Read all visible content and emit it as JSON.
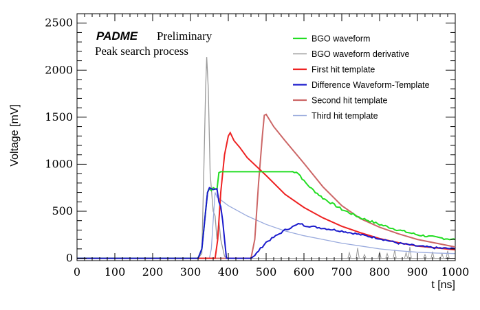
{
  "chart_data": {
    "type": "line",
    "title": "",
    "annotations": {
      "experiment": "PADME",
      "status": "Preliminary",
      "caption": "Peak search process"
    },
    "xlabel": "t [ns]",
    "ylabel": "Voltage [mV]",
    "xlim": [
      0,
      1000
    ],
    "ylim": [
      -25,
      2600
    ],
    "x_ticks": [
      "0",
      "100",
      "200",
      "300",
      "400",
      "500",
      "600",
      "700",
      "800",
      "900",
      "1000"
    ],
    "y_ticks": [
      "0",
      "500",
      "1000",
      "1500",
      "2000",
      "2500"
    ],
    "x_tick_values": [
      0,
      100,
      200,
      300,
      400,
      500,
      600,
      700,
      800,
      900,
      1000
    ],
    "y_tick_values": [
      0,
      500,
      1000,
      1500,
      2000,
      2500
    ],
    "grid": false,
    "legend_position": "top-right",
    "series": [
      {
        "name": "BGO waveform",
        "color": "#22dd22",
        "x": [
          0,
          320,
          330,
          340,
          345,
          350,
          355,
          360,
          370,
          375,
          380,
          400,
          450,
          500,
          550,
          580,
          590,
          600,
          620,
          650,
          700,
          750,
          800,
          850,
          900,
          950,
          1000
        ],
        "y": [
          0,
          0,
          100,
          500,
          700,
          740,
          720,
          750,
          730,
          910,
          920,
          920,
          920,
          920,
          920,
          920,
          880,
          820,
          740,
          640,
          520,
          430,
          360,
          300,
          250,
          220,
          200
        ],
        "noise": 12
      },
      {
        "name": "BGO waveform derivative",
        "color": "#999999",
        "x": [
          0,
          320,
          330,
          335,
          340,
          343,
          347,
          352,
          360,
          365,
          370,
          375,
          380,
          390,
          400,
          450,
          600,
          1000
        ],
        "y": [
          0,
          0,
          50,
          900,
          1800,
          2140,
          1800,
          900,
          500,
          450,
          200,
          400,
          200,
          20,
          0,
          0,
          0,
          0
        ],
        "spikes": [
          [
            720,
            60
          ],
          [
            742,
            110
          ],
          [
            760,
            40
          ],
          [
            800,
            70
          ],
          [
            820,
            50
          ],
          [
            840,
            90
          ],
          [
            870,
            60
          ],
          [
            880,
            120
          ],
          [
            920,
            40
          ],
          [
            940,
            70
          ],
          [
            965,
            50
          ],
          [
            980,
            80
          ]
        ]
      },
      {
        "name": "First hit template",
        "color": "#ee2222",
        "x": [
          0,
          365,
          372,
          380,
          390,
          400,
          405,
          415,
          430,
          450,
          500,
          550,
          600,
          650,
          700,
          750,
          800,
          850,
          900,
          950,
          1000
        ],
        "y": [
          0,
          0,
          200,
          700,
          1100,
          1300,
          1335,
          1250,
          1180,
          1070,
          880,
          680,
          540,
          430,
          340,
          270,
          210,
          165,
          130,
          110,
          90
        ]
      },
      {
        "name": "Difference Waveform-Template",
        "color": "#1a1acc",
        "x": [
          0,
          320,
          330,
          340,
          345,
          350,
          360,
          370,
          375,
          380,
          385,
          390,
          395,
          400,
          460,
          470,
          480,
          500,
          550,
          590,
          600,
          650,
          700,
          750,
          800,
          850,
          900,
          950,
          1000
        ],
        "y": [
          0,
          0,
          100,
          500,
          700,
          750,
          730,
          740,
          600,
          550,
          400,
          200,
          0,
          0,
          0,
          30,
          80,
          170,
          300,
          370,
          350,
          320,
          290,
          250,
          210,
          160,
          130,
          110,
          100
        ],
        "noise": 10
      },
      {
        "name": "Second hit template",
        "color": "#cc6666",
        "x": [
          0,
          460,
          470,
          480,
          490,
          495,
          500,
          520,
          550,
          600,
          650,
          700,
          750,
          800,
          850,
          900,
          950,
          1000
        ],
        "y": [
          0,
          0,
          200,
          800,
          1300,
          1520,
          1530,
          1400,
          1250,
          1010,
          760,
          560,
          420,
          330,
          260,
          200,
          160,
          120
        ]
      },
      {
        "name": "Third hit template",
        "color": "#99aadd",
        "x": [
          0,
          350,
          355,
          360,
          365,
          370,
          380,
          400,
          450,
          500,
          550,
          600,
          650,
          700,
          750,
          800,
          850,
          900,
          950,
          1000
        ],
        "y": [
          0,
          0,
          100,
          400,
          700,
          650,
          620,
          560,
          450,
          360,
          290,
          240,
          200,
          160,
          130,
          100,
          80,
          65,
          55,
          50
        ]
      }
    ]
  }
}
